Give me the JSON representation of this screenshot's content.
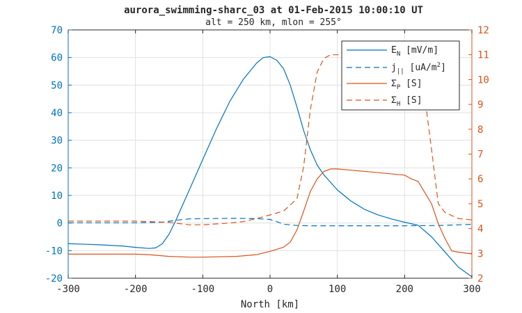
{
  "chart_data": {
    "type": "line",
    "title": "aurora_swimming-sharc_03 at 01-Feb-2015 10:00:10 UT",
    "subtitle": "alt = 250 km, mlon = 255°",
    "xlabel": "North [km]",
    "xlim": [
      -300,
      300
    ],
    "xticks": [
      -300,
      -200,
      -100,
      0,
      100,
      200,
      300
    ],
    "ylim_left": [
      -20,
      70
    ],
    "yticks_left": [
      -20,
      -10,
      0,
      10,
      20,
      30,
      40,
      50,
      60,
      70
    ],
    "ylim_right": [
      2,
      12
    ],
    "yticks_right": [
      2,
      3,
      4,
      5,
      6,
      7,
      8,
      9,
      10,
      11,
      12
    ],
    "grid": true,
    "legend_position": "top-right",
    "series": [
      {
        "name": "E_N [mV/m]",
        "legend_main": "E",
        "legend_sub": "N",
        "legend_sup": "",
        "legend_rest": " [mV/m]",
        "axis": "left",
        "color": "#0072BD",
        "dash": "solid",
        "x": [
          -300,
          -260,
          -220,
          -200,
          -180,
          -170,
          -160,
          -150,
          -140,
          -130,
          -120,
          -100,
          -80,
          -60,
          -40,
          -20,
          -10,
          0,
          10,
          20,
          30,
          40,
          50,
          60,
          70,
          80,
          100,
          120,
          140,
          160,
          180,
          200,
          220,
          240,
          260,
          280,
          300
        ],
        "values": [
          -7.5,
          -7.8,
          -8.3,
          -8.8,
          -9.2,
          -9.0,
          -7.5,
          -4.0,
          1.0,
          6.5,
          12.0,
          23.0,
          34.0,
          44.0,
          52.0,
          58.0,
          60.0,
          60.3,
          59.0,
          56.0,
          50.0,
          42.0,
          33.5,
          26.5,
          21.0,
          17.5,
          12.0,
          8.0,
          5.0,
          3.0,
          1.5,
          0.3,
          -0.8,
          -5.0,
          -10.5,
          -16.0,
          -19.5
        ]
      },
      {
        "name": "j_|| [uA/m^2]",
        "legend_main": "j",
        "legend_sub": "||",
        "legend_sup": "2",
        "legend_rest": " [uA/m",
        "axis": "left",
        "color": "#0072BD",
        "dash": "dashed",
        "x": [
          -300,
          -200,
          -160,
          -140,
          -120,
          -100,
          -50,
          -20,
          0,
          10,
          20,
          40,
          60,
          100,
          200,
          250,
          300
        ],
        "values": [
          0.1,
          0.1,
          0.3,
          1.0,
          1.5,
          1.6,
          1.7,
          1.6,
          1.3,
          0.5,
          -0.4,
          -0.9,
          -1.0,
          -1.0,
          -1.0,
          -0.9,
          -0.5
        ]
      },
      {
        "name": "Σ_P [S]",
        "legend_main": "Σ",
        "legend_sub": "P",
        "legend_sup": "",
        "legend_rest": " [S]",
        "axis": "right",
        "color": "#D95319",
        "dash": "solid",
        "x": [
          -300,
          -250,
          -200,
          -180,
          -150,
          -120,
          -100,
          -50,
          -20,
          0,
          20,
          30,
          40,
          50,
          60,
          70,
          80,
          90,
          100,
          150,
          200,
          210,
          220,
          240,
          250,
          260,
          270,
          280,
          300
        ],
        "values": [
          2.97,
          2.97,
          2.97,
          2.95,
          2.88,
          2.85,
          2.85,
          2.88,
          2.95,
          3.08,
          3.25,
          3.45,
          3.95,
          4.7,
          5.5,
          6.0,
          6.3,
          6.4,
          6.4,
          6.28,
          6.15,
          6.0,
          5.9,
          5.0,
          4.2,
          3.6,
          3.1,
          3.05,
          2.98
        ]
      },
      {
        "name": "Σ_H [S]",
        "legend_main": "Σ",
        "legend_sub": "H",
        "legend_sup": "",
        "legend_rest": " [S]",
        "axis": "right",
        "color": "#D95319",
        "dash": "dashed",
        "x": [
          -300,
          -250,
          -200,
          -150,
          -120,
          -100,
          -60,
          -40,
          -20,
          0,
          20,
          40,
          50,
          60,
          70,
          80,
          90,
          100,
          150,
          200,
          220,
          230,
          240,
          250,
          260,
          280,
          300
        ],
        "values": [
          4.3,
          4.3,
          4.3,
          4.25,
          4.15,
          4.15,
          4.22,
          4.28,
          4.4,
          4.55,
          4.7,
          5.2,
          6.5,
          8.8,
          10.3,
          10.85,
          11.0,
          11.0,
          11.0,
          11.0,
          10.6,
          9.3,
          7.2,
          5.0,
          4.65,
          4.4,
          4.35
        ]
      }
    ]
  },
  "colors": {
    "left_axis": "#0072BD",
    "right_axis": "#D95319",
    "grid": "#e0e0e0",
    "text": "#262626"
  }
}
